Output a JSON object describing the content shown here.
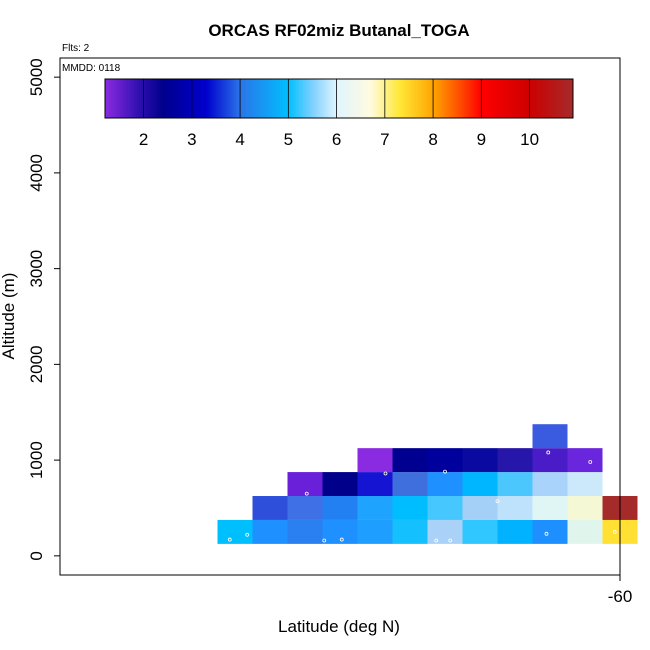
{
  "chart_data": {
    "type": "heatmap",
    "title": "ORCAS RF02miz Butanal_TOGA",
    "annotations": {
      "flights": "Flts: 2",
      "date": "MMDD: 0118"
    },
    "xlabel": "Latitude (deg N)",
    "ylabel": "Altitude (m)",
    "xlim": [
      -76,
      -60
    ],
    "ylim": [
      -200,
      5200
    ],
    "x_ticks": [
      {
        "value": -60,
        "label": "-60"
      }
    ],
    "y_ticks": [
      {
        "value": 0,
        "label": "0"
      },
      {
        "value": 1000,
        "label": "1000"
      },
      {
        "value": 2000,
        "label": "2000"
      },
      {
        "value": 3000,
        "label": "3000"
      },
      {
        "value": 4000,
        "label": "4000"
      },
      {
        "value": 5000,
        "label": "5000"
      }
    ],
    "colorbar": {
      "range": [
        1.2,
        10.9
      ],
      "ticks": [
        {
          "value": 2,
          "label": "2"
        },
        {
          "value": 3,
          "label": "3"
        },
        {
          "value": 4,
          "label": "4"
        },
        {
          "value": 5,
          "label": "5"
        },
        {
          "value": 6,
          "label": "6"
        },
        {
          "value": 7,
          "label": "7"
        },
        {
          "value": 8,
          "label": "8"
        },
        {
          "value": 9,
          "label": "9"
        },
        {
          "value": 10,
          "label": "10"
        }
      ],
      "stops": [
        {
          "value": 1.2,
          "color": "#8b2be2"
        },
        {
          "value": 1.9,
          "color": "#3010b0"
        },
        {
          "value": 2.4,
          "color": "#00008c"
        },
        {
          "value": 3.3,
          "color": "#0000cd"
        },
        {
          "value": 4.0,
          "color": "#2a74e8"
        },
        {
          "value": 5.0,
          "color": "#00bfff"
        },
        {
          "value": 5.5,
          "color": "#7fd0ff"
        },
        {
          "value": 6.0,
          "color": "#e0f4ff"
        },
        {
          "value": 6.7,
          "color": "#fffbe0"
        },
        {
          "value": 7.3,
          "color": "#ffe838"
        },
        {
          "value": 8.0,
          "color": "#ffa500"
        },
        {
          "value": 8.6,
          "color": "#ff4500"
        },
        {
          "value": 9.0,
          "color": "#ff0000"
        },
        {
          "value": 10.0,
          "color": "#cd0000"
        },
        {
          "value": 10.9,
          "color": "#a52a2a"
        }
      ]
    },
    "cells": [
      {
        "lat": -71,
        "alt": 250,
        "value": 4.9,
        "color": "#00bfff"
      },
      {
        "lat": -70,
        "alt": 250,
        "value": 4.6,
        "color": "#1e90ff"
      },
      {
        "lat": -69,
        "alt": 250,
        "value": 4.3,
        "color": "#2a80f0"
      },
      {
        "lat": -68,
        "alt": 250,
        "value": 4.4,
        "color": "#1e90ff"
      },
      {
        "lat": -67,
        "alt": 250,
        "value": 4.7,
        "color": "#1e9fff"
      },
      {
        "lat": -66,
        "alt": 250,
        "value": 5.1,
        "color": "#15c0ff"
      },
      {
        "lat": -65,
        "alt": 250,
        "value": 5.7,
        "color": "#aad2f8"
      },
      {
        "lat": -64,
        "alt": 250,
        "value": 5.2,
        "color": "#30c6ff"
      },
      {
        "lat": -63,
        "alt": 250,
        "value": 5.0,
        "color": "#00b2ff"
      },
      {
        "lat": -62,
        "alt": 250,
        "value": 4.6,
        "color": "#1e8fff"
      },
      {
        "lat": -61,
        "alt": 250,
        "value": 6.3,
        "color": "#e0f5ec"
      },
      {
        "lat": -60,
        "alt": 250,
        "value": 7.4,
        "color": "#ffe033"
      },
      {
        "lat": -70,
        "alt": 500,
        "value": 3.4,
        "color": "#2e4fd9"
      },
      {
        "lat": -69,
        "alt": 500,
        "value": 4.1,
        "color": "#4070e6"
      },
      {
        "lat": -68,
        "alt": 500,
        "value": 4.6,
        "color": "#2280f3"
      },
      {
        "lat": -67,
        "alt": 500,
        "value": 4.8,
        "color": "#1ea3ff"
      },
      {
        "lat": -66,
        "alt": 500,
        "value": 5.1,
        "color": "#00bdff"
      },
      {
        "lat": -65,
        "alt": 500,
        "value": 5.3,
        "color": "#46c8ff"
      },
      {
        "lat": -64,
        "alt": 500,
        "value": 5.6,
        "color": "#a4d0f8"
      },
      {
        "lat": -63,
        "alt": 500,
        "value": 5.8,
        "color": "#bee2fc"
      },
      {
        "lat": -62,
        "alt": 500,
        "value": 6.2,
        "color": "#e0f6f5"
      },
      {
        "lat": -61,
        "alt": 500,
        "value": 6.6,
        "color": "#f5f8d4"
      },
      {
        "lat": -60,
        "alt": 500,
        "value": 10.7,
        "color": "#a52a2a"
      },
      {
        "lat": -69,
        "alt": 750,
        "value": 1.6,
        "color": "#6a1fd8"
      },
      {
        "lat": -68,
        "alt": 750,
        "value": 2.3,
        "color": "#00008b"
      },
      {
        "lat": -67,
        "alt": 750,
        "value": 3.0,
        "color": "#1414d2"
      },
      {
        "lat": -66,
        "alt": 750,
        "value": 4.0,
        "color": "#3f6fdd"
      },
      {
        "lat": -65,
        "alt": 750,
        "value": 4.6,
        "color": "#1e90ff"
      },
      {
        "lat": -64,
        "alt": 750,
        "value": 4.9,
        "color": "#00b6ff"
      },
      {
        "lat": -63,
        "alt": 750,
        "value": 5.3,
        "color": "#4cc7fd"
      },
      {
        "lat": -62,
        "alt": 750,
        "value": 5.6,
        "color": "#a9d3fa"
      },
      {
        "lat": -61,
        "alt": 750,
        "value": 5.9,
        "color": "#cbe9fb"
      },
      {
        "lat": -67,
        "alt": 1000,
        "value": 1.5,
        "color": "#8a2be2"
      },
      {
        "lat": -66,
        "alt": 1000,
        "value": 2.3,
        "color": "#000090"
      },
      {
        "lat": -65,
        "alt": 1000,
        "value": 2.5,
        "color": "#00009c"
      },
      {
        "lat": -64,
        "alt": 1000,
        "value": 2.6,
        "color": "#0a0aa0"
      },
      {
        "lat": -63,
        "alt": 1000,
        "value": 2.0,
        "color": "#2716aa"
      },
      {
        "lat": -62,
        "alt": 1000,
        "value": 1.8,
        "color": "#4a1cc8"
      },
      {
        "lat": -61,
        "alt": 1000,
        "value": 1.6,
        "color": "#6a26dc"
      },
      {
        "lat": -62,
        "alt": 1250,
        "value": 3.8,
        "color": "#3a5ae0"
      }
    ],
    "sample_points": [
      {
        "lat": -71.15,
        "alt": 170
      },
      {
        "lat": -70.65,
        "alt": 220
      },
      {
        "lat": -68.45,
        "alt": 160
      },
      {
        "lat": -67.95,
        "alt": 170
      },
      {
        "lat": -65.25,
        "alt": 160
      },
      {
        "lat": -64.85,
        "alt": 160
      },
      {
        "lat": -68.95,
        "alt": 650
      },
      {
        "lat": -66.7,
        "alt": 860
      },
      {
        "lat": -65.0,
        "alt": 880
      },
      {
        "lat": -63.5,
        "alt": 570
      },
      {
        "lat": -62.1,
        "alt": 230
      },
      {
        "lat": -62.05,
        "alt": 1080
      },
      {
        "lat": -60.85,
        "alt": 980
      },
      {
        "lat": -60.15,
        "alt": 250
      }
    ]
  }
}
